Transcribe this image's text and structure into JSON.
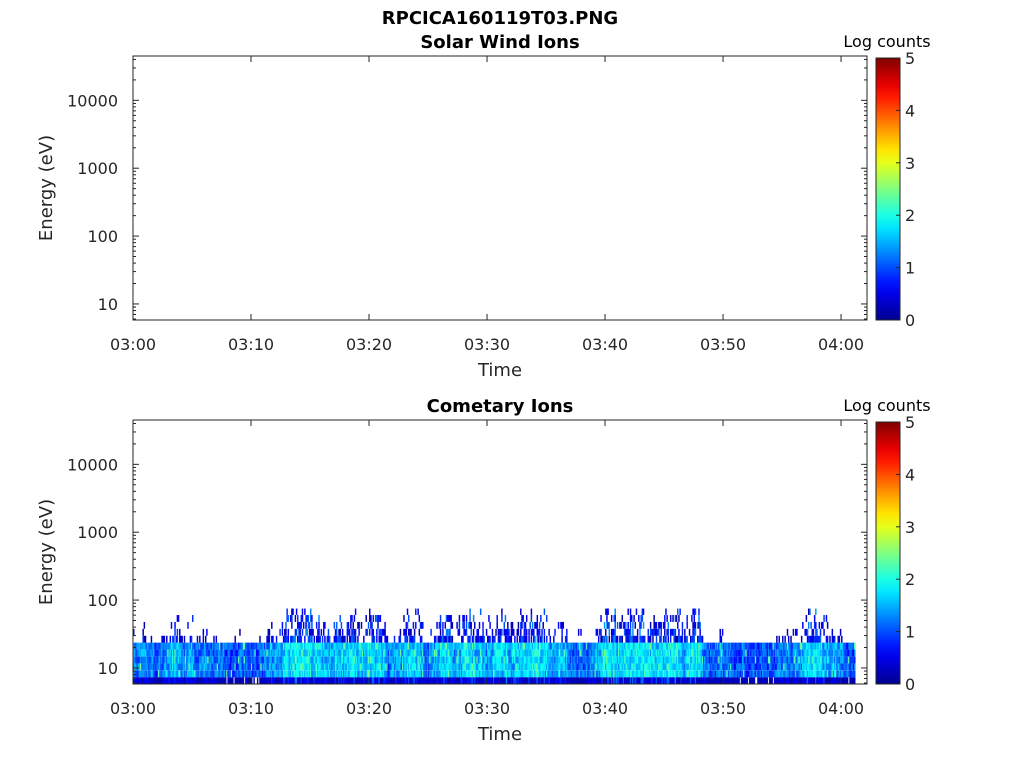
{
  "figure": {
    "title": "RPCICA160119T03.PNG"
  },
  "colormap": {
    "name": "jet",
    "stops": [
      "#00008f",
      "#0000ff",
      "#00ffff",
      "#ffff00",
      "#ff0000",
      "#800000"
    ]
  },
  "chart_data": [
    {
      "type": "heatmap",
      "title": "Solar Wind Ions",
      "xlabel": "Time",
      "ylabel": "Energy (eV)",
      "x_ticks": [
        "03:00",
        "03:10",
        "03:20",
        "03:30",
        "03:40",
        "03:50",
        "04:00"
      ],
      "x_range_minutes": [
        0,
        62.2
      ],
      "y_scale": "log",
      "y_ticks": [
        "10",
        "100",
        "1000",
        "10000"
      ],
      "y_range_eV": [
        5.8,
        45000
      ],
      "colorbar": {
        "title": "Log counts",
        "ticks": [
          "0",
          "1",
          "2",
          "3",
          "4",
          "5"
        ],
        "range": [
          0,
          5
        ]
      },
      "data_description": "empty",
      "cells": []
    },
    {
      "type": "heatmap",
      "title": "Cometary Ions",
      "xlabel": "Time",
      "ylabel": "Energy (eV)",
      "x_ticks": [
        "03:00",
        "03:10",
        "03:20",
        "03:30",
        "03:40",
        "03:50",
        "04:00"
      ],
      "x_range_minutes": [
        0,
        62.2
      ],
      "y_scale": "log",
      "y_ticks": [
        "10",
        "100",
        "1000",
        "10000"
      ],
      "y_range_eV": [
        5.8,
        45000
      ],
      "colorbar": {
        "title": "Log counts",
        "ticks": [
          "0",
          "1",
          "2",
          "3",
          "4",
          "5"
        ],
        "range": [
          0,
          5
        ]
      },
      "signal": {
        "energy_bins_eV": [
          6.5,
          8.2,
          10.4,
          13.1,
          16.6,
          21.0,
          26.5,
          33.5,
          42.4,
          53.6,
          67.8
        ],
        "time_start_min": 0,
        "time_end_min": 61.2,
        "time_step_min": 0.1,
        "core_energy_eV": [
          7.5,
          22
        ],
        "core_log_counts": 1.6,
        "peak_log_counts": 2.5,
        "max_energy_eV": 75
      }
    }
  ]
}
